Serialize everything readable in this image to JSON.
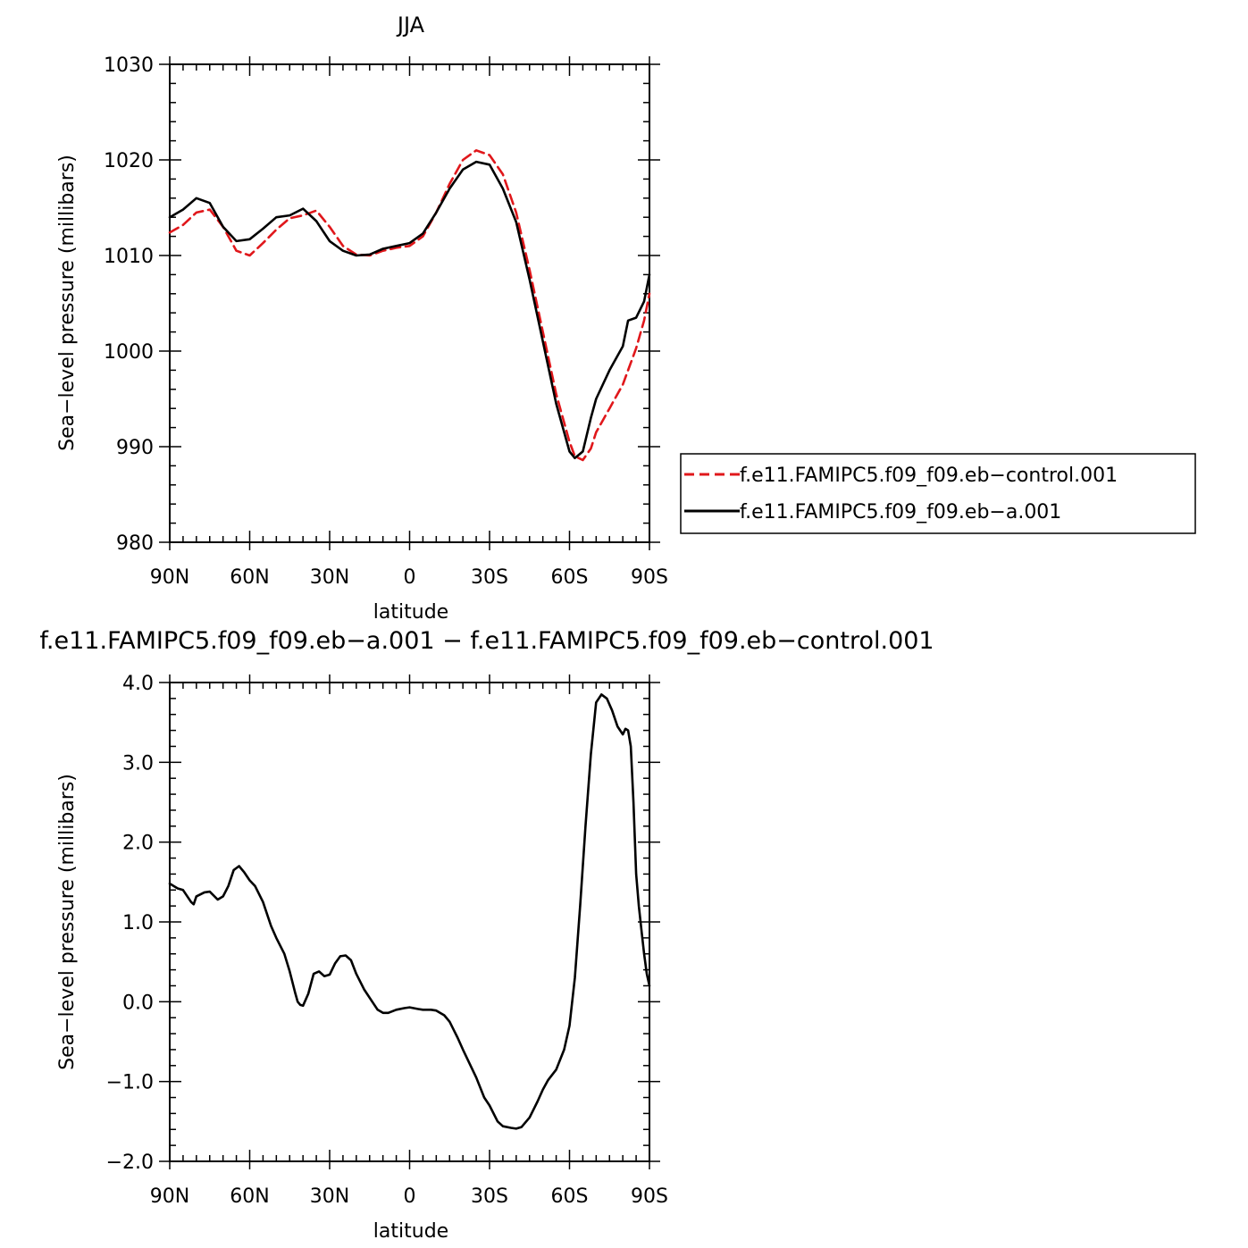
{
  "chart_data": [
    {
      "type": "line",
      "title": "JJA",
      "xlabel": "latitude",
      "ylabel": "Sea−level pressure (millibars)",
      "x_units": "degrees latitude (negative = N, positive = S)",
      "xlim": [
        -90,
        90
      ],
      "ylim": [
        980,
        1030
      ],
      "xticks": [
        -90,
        -60,
        -30,
        0,
        30,
        60,
        90
      ],
      "xtick_labels": [
        "90N",
        "60N",
        "30N",
        "0",
        "30S",
        "60S",
        "90S"
      ],
      "yticks": [
        980,
        990,
        1000,
        1010,
        1020,
        1030
      ],
      "ytick_labels": [
        "980",
        "990",
        "1000",
        "1010",
        "1020",
        "1030"
      ],
      "grid": false,
      "legend_position": "right",
      "series": [
        {
          "name": "f.e11.FAMIPC5.f09_f09.eb−control.001",
          "color": "#e0171b",
          "dash": "dashed",
          "x": [
            -90,
            -85,
            -80,
            -75,
            -70,
            -65,
            -60,
            -55,
            -50,
            -45,
            -40,
            -35,
            -30,
            -25,
            -20,
            -15,
            -10,
            -5,
            0,
            5,
            10,
            15,
            20,
            25,
            30,
            35,
            40,
            45,
            50,
            55,
            60,
            62,
            65,
            68,
            70,
            75,
            80,
            85,
            88,
            90
          ],
          "y": [
            1012.4,
            1013.2,
            1014.5,
            1014.8,
            1013.0,
            1010.5,
            1010.0,
            1011.3,
            1012.7,
            1013.9,
            1014.2,
            1014.7,
            1013.0,
            1011.0,
            1010.1,
            1010.0,
            1010.5,
            1010.8,
            1011.0,
            1012.0,
            1014.5,
            1017.5,
            1020.0,
            1021.0,
            1020.5,
            1018.5,
            1014.5,
            1008.5,
            1002.0,
            995.5,
            990.5,
            989.0,
            988.6,
            989.8,
            991.5,
            994.0,
            996.5,
            1000.3,
            1003.2,
            1006.0
          ]
        },
        {
          "name": "f.e11.FAMIPC5.f09_f09.eb−a.001",
          "color": "#000000",
          "dash": "solid",
          "x": [
            -90,
            -85,
            -80,
            -75,
            -70,
            -65,
            -60,
            -55,
            -50,
            -45,
            -40,
            -35,
            -30,
            -25,
            -20,
            -15,
            -10,
            -5,
            0,
            5,
            10,
            15,
            20,
            25,
            30,
            35,
            40,
            45,
            50,
            55,
            60,
            62,
            65,
            68,
            70,
            75,
            78,
            80,
            82,
            85,
            88,
            90
          ],
          "y": [
            1014.0,
            1014.8,
            1016.0,
            1015.5,
            1013.0,
            1011.5,
            1011.7,
            1012.8,
            1014.0,
            1014.2,
            1014.9,
            1013.6,
            1011.5,
            1010.5,
            1010.0,
            1010.1,
            1010.7,
            1011.0,
            1011.3,
            1012.3,
            1014.5,
            1017.0,
            1019.0,
            1019.8,
            1019.5,
            1017.0,
            1013.5,
            1007.5,
            1001.0,
            994.5,
            989.5,
            988.8,
            989.5,
            993.0,
            995.0,
            998.0,
            999.5,
            1000.5,
            1003.2,
            1003.5,
            1005.2,
            1008.0
          ]
        }
      ]
    },
    {
      "type": "line",
      "title": "f.e11.FAMIPC5.f09_f09.eb−a.001 − f.e11.FAMIPC5.f09_f09.eb−control.001",
      "xlabel": "latitude",
      "ylabel": "Sea−level pressure (millibars)",
      "x_units": "degrees latitude (negative = N, positive = S)",
      "xlim": [
        -90,
        90
      ],
      "ylim": [
        -2.0,
        4.0
      ],
      "xticks": [
        -90,
        -60,
        -30,
        0,
        30,
        60,
        90
      ],
      "xtick_labels": [
        "90N",
        "60N",
        "30N",
        "0",
        "30S",
        "60S",
        "90S"
      ],
      "yticks": [
        -2.0,
        -1.0,
        0.0,
        1.0,
        2.0,
        3.0,
        4.0
      ],
      "ytick_labels": [
        "−2.0",
        "−1.0",
        "0.0",
        "1.0",
        "2.0",
        "3.0",
        "4.0"
      ],
      "grid": false,
      "series": [
        {
          "color": "#000000",
          "dash": "solid",
          "x": [
            -90,
            -87,
            -85,
            -82,
            -81,
            -80,
            -77,
            -75,
            -72,
            -70,
            -68,
            -66,
            -64,
            -62,
            -60,
            -58,
            -55,
            -52,
            -50,
            -47,
            -45,
            -43,
            -42,
            -41,
            -40,
            -38,
            -36,
            -34,
            -32,
            -30,
            -28,
            -26,
            -24,
            -22,
            -20,
            -17,
            -14,
            -12,
            -10,
            -8,
            -5,
            -2,
            0,
            3,
            5,
            8,
            10,
            13,
            15,
            18,
            20,
            25,
            28,
            30,
            33,
            35,
            38,
            40,
            42,
            45,
            48,
            50,
            52,
            55,
            58,
            60,
            62,
            64,
            66,
            68,
            70,
            72,
            74,
            76,
            78,
            80,
            81,
            82,
            83,
            84,
            85,
            86,
            87,
            88,
            89,
            90
          ],
          "y": [
            1.48,
            1.42,
            1.4,
            1.25,
            1.22,
            1.32,
            1.37,
            1.38,
            1.28,
            1.32,
            1.45,
            1.65,
            1.7,
            1.62,
            1.52,
            1.45,
            1.25,
            0.95,
            0.8,
            0.6,
            0.38,
            0.12,
            0.0,
            -0.04,
            -0.05,
            0.1,
            0.35,
            0.38,
            0.32,
            0.34,
            0.48,
            0.57,
            0.58,
            0.52,
            0.35,
            0.15,
            0.0,
            -0.1,
            -0.14,
            -0.14,
            -0.1,
            -0.08,
            -0.07,
            -0.09,
            -0.1,
            -0.1,
            -0.11,
            -0.17,
            -0.25,
            -0.45,
            -0.6,
            -0.95,
            -1.2,
            -1.3,
            -1.5,
            -1.56,
            -1.58,
            -1.59,
            -1.57,
            -1.45,
            -1.25,
            -1.1,
            -0.98,
            -0.85,
            -0.6,
            -0.3,
            0.3,
            1.2,
            2.2,
            3.1,
            3.75,
            3.85,
            3.8,
            3.65,
            3.45,
            3.35,
            3.42,
            3.4,
            3.2,
            2.5,
            1.6,
            1.2,
            0.9,
            0.6,
            0.35,
            0.2
          ]
        }
      ]
    }
  ]
}
